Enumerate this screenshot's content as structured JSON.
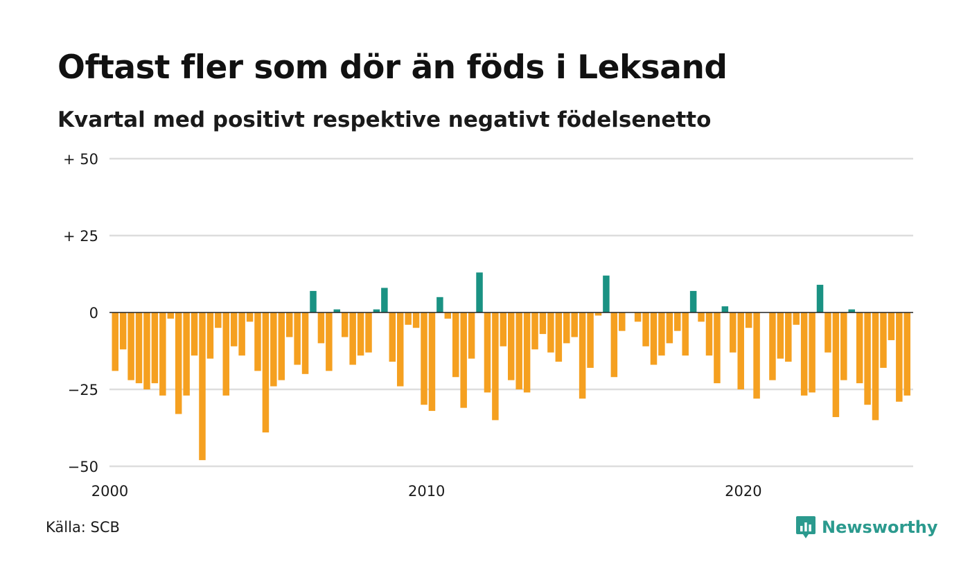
{
  "title": "Oftast fler som dör än föds i Leksand",
  "subtitle": "Kvartal med positivt respektive negativt födelsenetto",
  "source": "Källa: SCB",
  "brand": "Newsworthy",
  "colors": {
    "positive": "#1a9283",
    "negative": "#f5a020",
    "grid": "#dddddd",
    "zero_line": "#222222"
  },
  "chart_data": {
    "type": "bar",
    "title": "Oftast fler som dör än föds i Leksand",
    "subtitle": "Kvartal med positivt respektive negativt födelsenetto",
    "xlabel": "",
    "ylabel": "",
    "ylim": [
      -50,
      50
    ],
    "yticks": [
      {
        "value": 50,
        "label": "+ 50"
      },
      {
        "value": 25,
        "label": "+ 25"
      },
      {
        "value": 0,
        "label": "0"
      },
      {
        "value": -25,
        "label": "−25"
      },
      {
        "value": -50,
        "label": "−50"
      }
    ],
    "xticks": [
      {
        "value": 2000,
        "label": "2000"
      },
      {
        "value": 2010,
        "label": "2010"
      },
      {
        "value": 2020,
        "label": "2020"
      }
    ],
    "grid": true,
    "legend": "none",
    "start": "2000 Q1",
    "frequency": "quarterly",
    "values": [
      -19,
      -12,
      -22,
      -23,
      -25,
      -23,
      -27,
      -2,
      -33,
      -27,
      -14,
      -48,
      -15,
      -5,
      -27,
      -11,
      -14,
      -3,
      -19,
      -39,
      -24,
      -22,
      -8,
      -17,
      -20,
      7,
      -10,
      -19,
      1,
      -8,
      -17,
      -14,
      -13,
      1,
      8,
      -16,
      -24,
      -4,
      -5,
      -30,
      -32,
      5,
      -2,
      -21,
      -31,
      -15,
      13,
      -26,
      -35,
      -11,
      -22,
      -25,
      -26,
      -12,
      -7,
      -13,
      -16,
      -10,
      -8,
      -28,
      -18,
      -1,
      12,
      -21,
      -6,
      0,
      -3,
      -11,
      -17,
      -14,
      -10,
      -6,
      -14,
      7,
      -3,
      -14,
      -23,
      2,
      -13,
      -25,
      -5,
      -28,
      0,
      -22,
      -15,
      -16,
      -4,
      -27,
      -26,
      9,
      -13,
      -34,
      -22,
      1,
      -23,
      -30,
      -35,
      -18,
      -9,
      -29,
      -27
    ]
  }
}
